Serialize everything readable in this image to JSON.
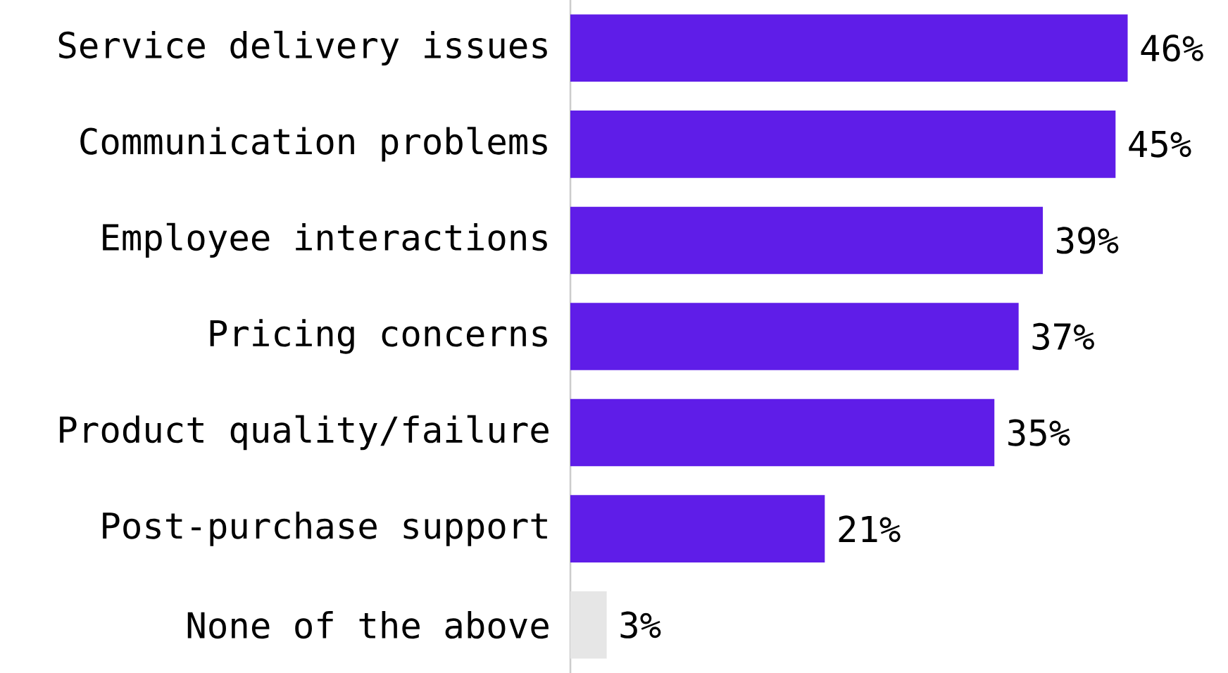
{
  "chart_data": {
    "type": "bar",
    "orientation": "horizontal",
    "categories": [
      "Service delivery issues",
      "Communication problems",
      "Employee interactions",
      "Pricing concerns",
      "Product quality/failure",
      "Post-purchase support",
      "None of the above"
    ],
    "values": [
      46,
      45,
      39,
      37,
      35,
      21,
      3
    ],
    "colors": [
      "#5f1de8",
      "#5f1de8",
      "#5f1de8",
      "#5f1de8",
      "#5f1de8",
      "#5f1de8",
      "#e6e6e6"
    ],
    "value_labels": [
      "46%",
      "45%",
      "39%",
      "37%",
      "35%",
      "21%",
      "3%"
    ]
  }
}
